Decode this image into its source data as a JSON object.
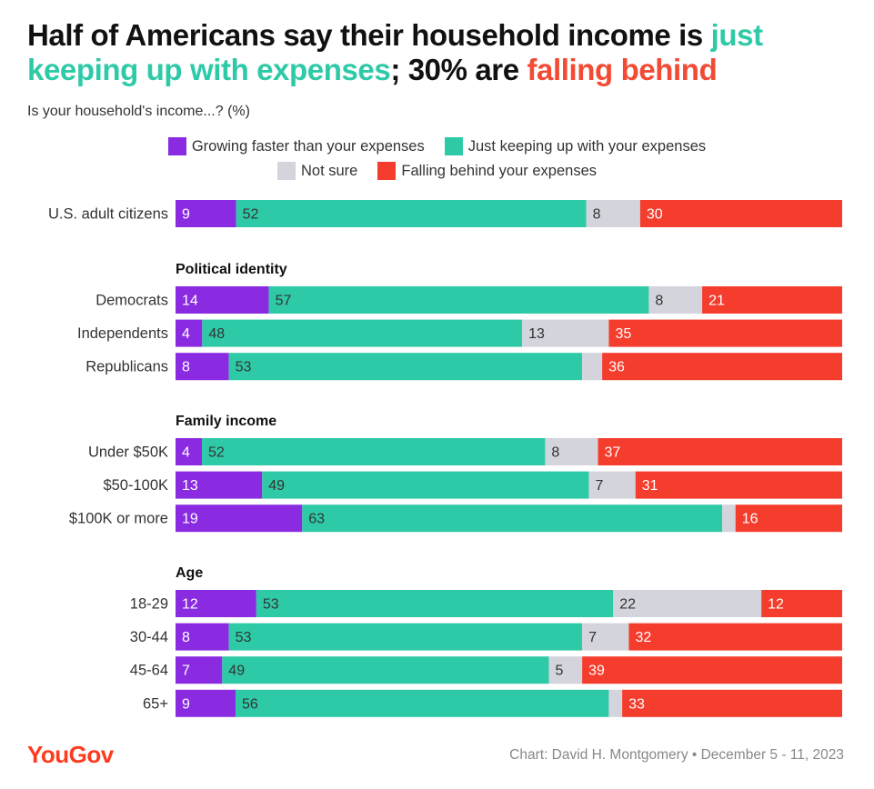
{
  "header": {
    "title_part1": "Half of Americans say their household income is ",
    "title_highlight1": "just keeping up with expenses",
    "title_part2": "; 30% are ",
    "title_highlight2": "falling behind",
    "subtitle": "Is your household's income...? (%)"
  },
  "legend": {
    "growing": "Growing faster than your expenses",
    "keeping": "Just keeping up with your expenses",
    "notsure": "Not sure",
    "falling": "Falling behind your expenses"
  },
  "colors": {
    "growing": "#8a2be2",
    "keeping": "#2ecaa7",
    "notsure": "#d3d4dc",
    "falling": "#f53d2d"
  },
  "chart_data": {
    "type": "bar",
    "orientation": "horizontal-stacked-100",
    "title": "Half of Americans say their household income is just keeping up with expenses; 30% are falling behind",
    "subtitle": "Is your household's income...? (%)",
    "series_names": [
      "Growing faster than your expenses",
      "Just keeping up with your expenses",
      "Not sure",
      "Falling behind your expenses"
    ],
    "groups": [
      {
        "label": "",
        "rows": [
          {
            "label": "U.S. adult citizens",
            "values": [
              9,
              52,
              8,
              30
            ],
            "labels": [
              "9",
              "52",
              "8",
              "30"
            ]
          }
        ]
      },
      {
        "label": "Political identity",
        "rows": [
          {
            "label": "Democrats",
            "values": [
              14,
              57,
              8,
              21
            ],
            "labels": [
              "14",
              "57",
              "8",
              "21"
            ]
          },
          {
            "label": "Independents",
            "values": [
              4,
              48,
              13,
              35
            ],
            "labels": [
              "4",
              "48",
              "13",
              "35"
            ]
          },
          {
            "label": "Republicans",
            "values": [
              8,
              53,
              3,
              36
            ],
            "labels": [
              "8",
              "53",
              "",
              "36"
            ]
          }
        ]
      },
      {
        "label": "Family income",
        "rows": [
          {
            "label": "Under $50K",
            "values": [
              4,
              52,
              8,
              37
            ],
            "labels": [
              "4",
              "52",
              "8",
              "37"
            ]
          },
          {
            "label": "$50-100K",
            "values": [
              13,
              49,
              7,
              31
            ],
            "labels": [
              "13",
              "49",
              "7",
              "31"
            ]
          },
          {
            "label": "$100K or more",
            "values": [
              19,
              63,
              2,
              16
            ],
            "labels": [
              "19",
              "63",
              "",
              "16"
            ]
          }
        ]
      },
      {
        "label": "Age",
        "rows": [
          {
            "label": "18-29",
            "values": [
              12,
              53,
              22,
              12
            ],
            "labels": [
              "12",
              "53",
              "22",
              "12"
            ]
          },
          {
            "label": "30-44",
            "values": [
              8,
              53,
              7,
              32
            ],
            "labels": [
              "8",
              "53",
              "7",
              "32"
            ]
          },
          {
            "label": "45-64",
            "values": [
              7,
              49,
              5,
              39
            ],
            "labels": [
              "7",
              "49",
              "5",
              "39"
            ]
          },
          {
            "label": "65+",
            "values": [
              9,
              56,
              2,
              33
            ],
            "labels": [
              "9",
              "56",
              "",
              "33"
            ]
          }
        ]
      }
    ]
  },
  "footer": {
    "logo": "YouGov",
    "credit": "Chart: David H. Montgomery • December 5 - 11, 2023"
  }
}
